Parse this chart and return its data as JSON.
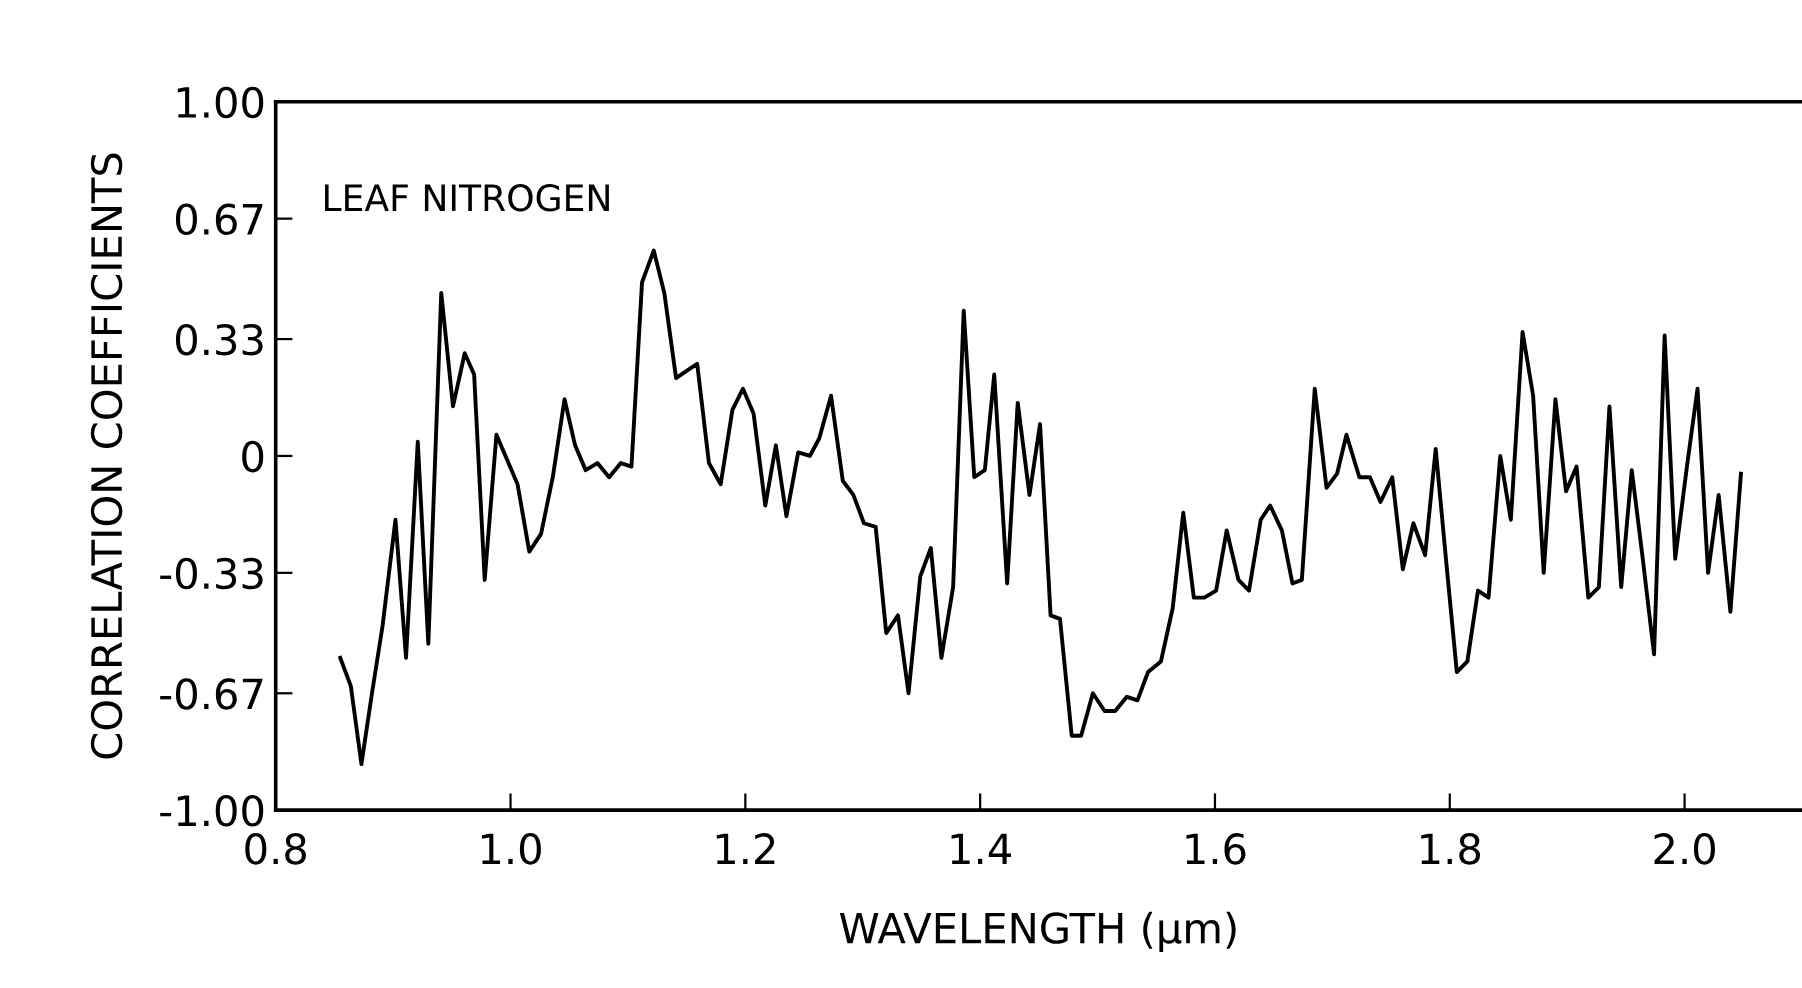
{
  "chart_data": {
    "type": "line",
    "xlabel": "WAVELENGTH (μm)",
    "ylabel": "CORRELATION COEFFICIENTS",
    "annotations": [
      "LEAF NITROGEN"
    ],
    "x": [
      0.855,
      0.864,
      0.873,
      0.882,
      0.891,
      0.902,
      0.911,
      0.921,
      0.93,
      0.941,
      0.951,
      0.961,
      0.969,
      0.978,
      0.988,
      0.997,
      1.006,
      1.016,
      1.026,
      1.036,
      1.046,
      1.055,
      1.064,
      1.074,
      1.084,
      1.094,
      1.103,
      1.112,
      1.122,
      1.131,
      1.141,
      1.15,
      1.159,
      1.169,
      1.179,
      1.189,
      1.198,
      1.207,
      1.217,
      1.226,
      1.235,
      1.245,
      1.255,
      1.263,
      1.273,
      1.283,
      1.292,
      1.301,
      1.311,
      1.32,
      1.33,
      1.339,
      1.349,
      1.358,
      1.367,
      1.377,
      1.386,
      1.395,
      1.404,
      1.412,
      1.423,
      1.432,
      1.442,
      1.451,
      1.46,
      1.468,
      1.478,
      1.486,
      1.496,
      1.506,
      1.515,
      1.525,
      1.534,
      1.543,
      1.554,
      1.564,
      1.573,
      1.582,
      1.591,
      1.601,
      1.61,
      1.62,
      1.629,
      1.639,
      1.647,
      1.657,
      1.666,
      1.674,
      1.685,
      1.695,
      1.704,
      1.712,
      1.723,
      1.732,
      1.741,
      1.751,
      1.76,
      1.769,
      1.779,
      1.788,
      1.797,
      1.806,
      1.815,
      1.824,
      1.833,
      1.843,
      1.852,
      1.862,
      1.871,
      1.88,
      1.89,
      1.899,
      1.908,
      1.918,
      1.927,
      1.936,
      1.946,
      1.955,
      1.964,
      1.974,
      1.983,
      1.992,
      2.002,
      2.011,
      2.02,
      2.029,
      2.039,
      2.048
    ],
    "series": [
      {
        "color": "#000000",
        "values": [
          -0.57,
          -0.65,
          -0.87,
          -0.67,
          -0.48,
          -0.18,
          -0.57,
          0.04,
          -0.53,
          0.46,
          0.14,
          0.29,
          0.23,
          -0.35,
          0.06,
          -0.01,
          -0.08,
          -0.27,
          -0.22,
          -0.06,
          0.16,
          0.03,
          -0.04,
          -0.02,
          -0.06,
          -0.02,
          -0.03,
          0.49,
          0.58,
          0.46,
          0.22,
          0.24,
          0.26,
          -0.02,
          -0.08,
          0.13,
          0.19,
          0.12,
          -0.14,
          0.03,
          -0.17,
          0.01,
          0.0,
          0.05,
          0.17,
          -0.07,
          -0.11,
          -0.19,
          -0.2,
          -0.5,
          -0.45,
          -0.67,
          -0.34,
          -0.26,
          -0.57,
          -0.37,
          0.41,
          -0.06,
          -0.04,
          0.23,
          -0.36,
          0.15,
          -0.11,
          0.09,
          -0.45,
          -0.46,
          -0.79,
          -0.79,
          -0.67,
          -0.72,
          -0.72,
          -0.68,
          -0.69,
          -0.61,
          -0.58,
          -0.43,
          -0.16,
          -0.4,
          -0.4,
          -0.38,
          -0.21,
          -0.35,
          -0.38,
          -0.18,
          -0.14,
          -0.21,
          -0.36,
          -0.35,
          0.19,
          -0.09,
          -0.05,
          0.06,
          -0.06,
          -0.06,
          -0.13,
          -0.06,
          -0.32,
          -0.19,
          -0.28,
          0.02,
          -0.3,
          -0.61,
          -0.58,
          -0.38,
          -0.4,
          0.0,
          -0.18,
          0.35,
          0.17,
          -0.33,
          0.16,
          -0.1,
          -0.03,
          -0.4,
          -0.37,
          0.14,
          -0.37,
          -0.04,
          -0.28,
          -0.56,
          0.34,
          -0.29,
          -0.03,
          0.19,
          -0.33,
          -0.11,
          -0.44,
          -0.05
        ]
      }
    ],
    "xlim": [
      0.8,
      2.1
    ],
    "ylim": [
      -1.0,
      1.0
    ],
    "xticks": [
      {
        "value": 0.8,
        "label": "0.8"
      },
      {
        "value": 1.0,
        "label": "1.0"
      },
      {
        "value": 1.2,
        "label": "1.2"
      },
      {
        "value": 1.4,
        "label": "1.4"
      },
      {
        "value": 1.6,
        "label": "1.6"
      },
      {
        "value": 1.8,
        "label": "1.8"
      },
      {
        "value": 2.0,
        "label": "2.0"
      }
    ],
    "yticks": [
      {
        "value": 1.0,
        "label": "1.00"
      },
      {
        "value": 0.67,
        "label": "0.67"
      },
      {
        "value": 0.33,
        "label": "0.33"
      },
      {
        "value": 0,
        "label": "0"
      },
      {
        "value": -0.33,
        "label": "-0.33"
      },
      {
        "value": -0.67,
        "label": "-0.67"
      },
      {
        "value": -1.0,
        "label": "-1.00"
      }
    ],
    "grid": false,
    "legend": false,
    "marker": "none",
    "line_style": "solid"
  }
}
